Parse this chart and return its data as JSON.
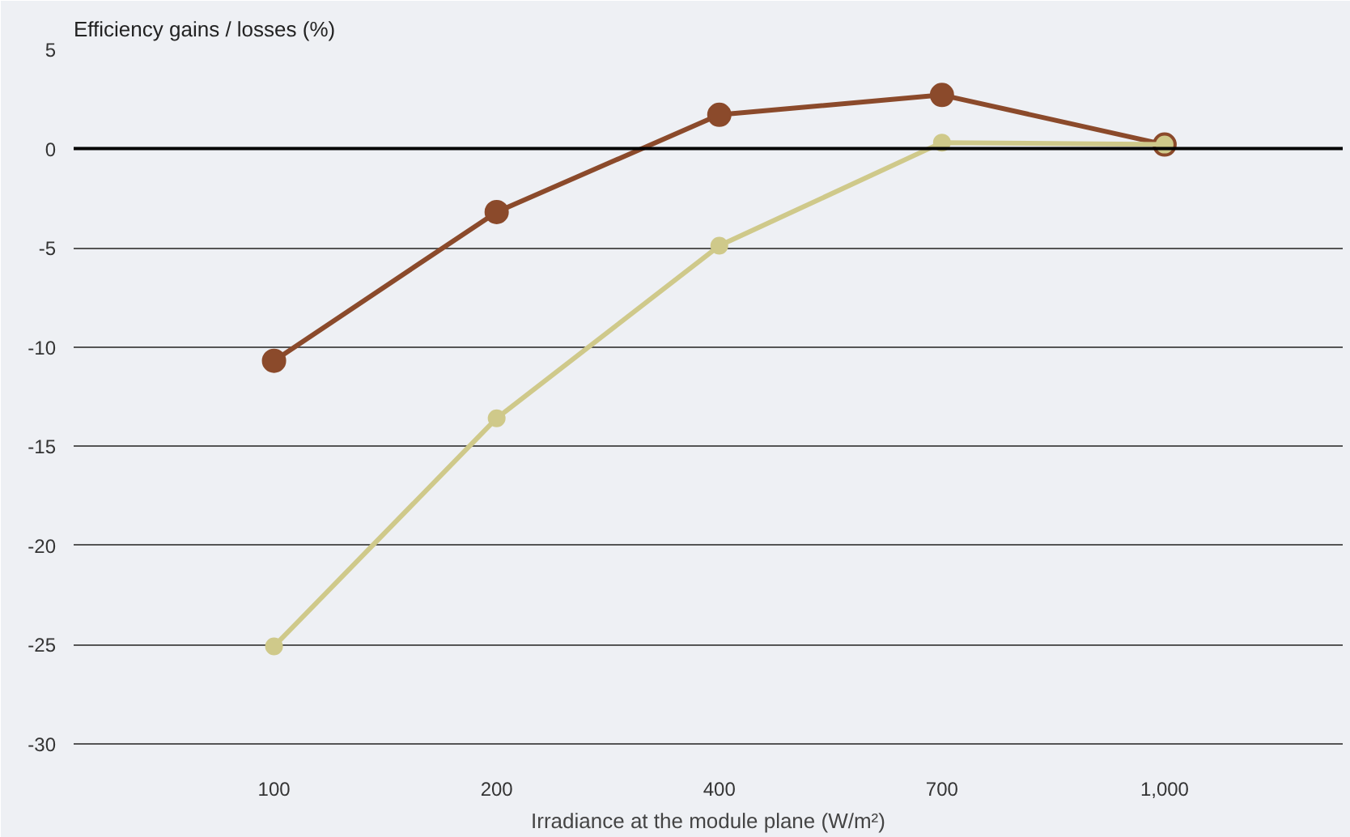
{
  "chart_data": {
    "type": "line",
    "ylabel": "Efficiency gains / losses (%)",
    "xlabel": "Irradiance at the module plane (W/m²)",
    "categories": [
      "100",
      "200",
      "400",
      "700",
      "1,000"
    ],
    "series": [
      {
        "color": "#8b4a2b",
        "values": [
          -10.7,
          -3.2,
          1.7,
          2.7,
          0.2
        ]
      },
      {
        "color": "#cfc98a",
        "values": [
          -25.1,
          -13.6,
          -4.9,
          0.3,
          0.2
        ]
      }
    ],
    "ylim": [
      -31,
      5
    ],
    "yticks": [
      5,
      0,
      -5,
      -10,
      -15,
      -20,
      -25,
      -30
    ],
    "ref_lines": [
      {
        "axis": "y",
        "value": 0,
        "color": "#000000"
      }
    ],
    "grid": "y",
    "marker": "circle",
    "line_style": "solid"
  }
}
